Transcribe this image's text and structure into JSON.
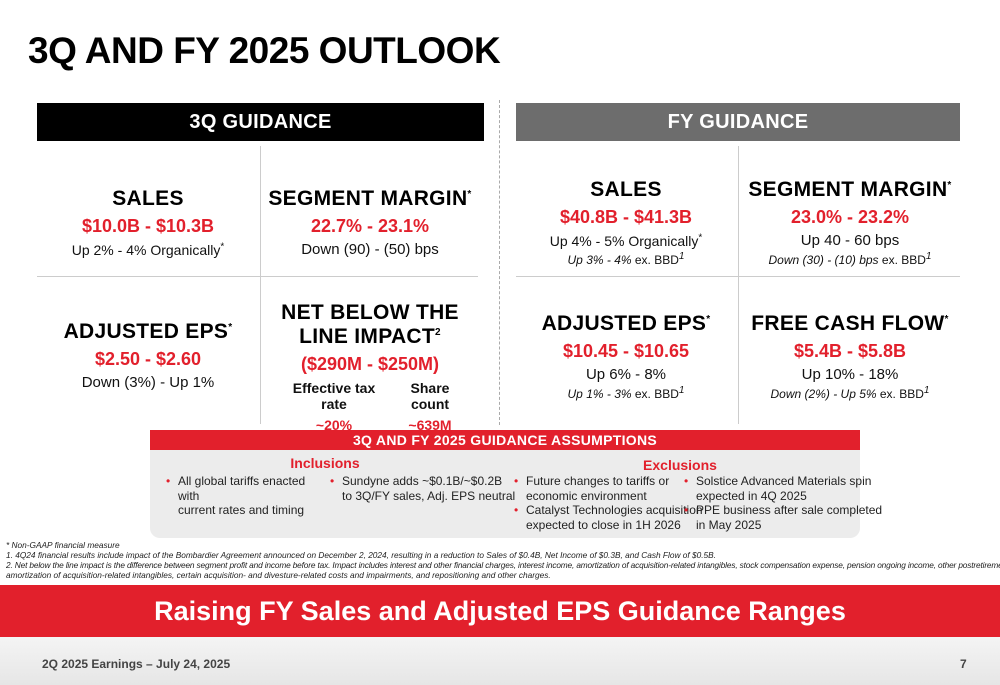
{
  "title": "3Q AND FY 2025 OUTLOOK",
  "q3": {
    "header": "3Q GUIDANCE",
    "sales": {
      "label": "SALES",
      "value": "$10.0B - $10.3B",
      "detail": "Up 2% - 4% Organically",
      "mark": "*"
    },
    "segment_margin": {
      "label": "SEGMENT MARGIN",
      "mark": "*",
      "value": "22.7% - 23.1%",
      "detail": "Down (90) - (50) bps"
    },
    "adjusted_eps": {
      "label": "ADJUSTED EPS",
      "mark": "*",
      "value": "$2.50 - $2.60",
      "detail": "Down (3%) - Up 1%"
    },
    "net_below": {
      "label_line1": "NET BELOW THE",
      "label_line2": "LINE IMPACT",
      "mark": "2",
      "value": "($290M - $250M)",
      "tax_label": "Effective tax rate",
      "tax_value": "~20%",
      "share_label": "Share count",
      "share_value": "~639M"
    }
  },
  "fy": {
    "header": "FY GUIDANCE",
    "sales": {
      "label": "SALES",
      "value": "$40.8B - $41.3B",
      "detail": "Up 4% - 5% Organically",
      "mark": "*",
      "note": "Up 3% - 4%",
      "note_suffix": " ex. BBD",
      "note_mark": "1"
    },
    "segment_margin": {
      "label": "SEGMENT MARGIN",
      "mark": "*",
      "value": "23.0% - 23.2%",
      "detail": "Up 40 - 60 bps",
      "note": "Down (30) - (10) bps",
      "note_suffix": " ex. BBD",
      "note_mark": "1"
    },
    "adjusted_eps": {
      "label": "ADJUSTED EPS",
      "mark": "*",
      "value": "$10.45 - $10.65",
      "detail": "Up 6% - 8%",
      "note": "Up 1% - 3%",
      "note_suffix": " ex. BBD",
      "note_mark": "1"
    },
    "free_cash_flow": {
      "label": "FREE CASH FLOW",
      "mark": "*",
      "value": "$5.4B - $5.8B",
      "detail": "Up 10% - 18%",
      "note": "Down (2%) - Up 5%",
      "note_suffix": " ex. BBD",
      "note_mark": "1"
    }
  },
  "assumptions": {
    "header": "3Q AND FY 2025 GUIDANCE ASSUMPTIONS",
    "inclusions": {
      "label": "Inclusions",
      "items": [
        [
          "All global tariffs enacted with",
          "current rates and timing"
        ],
        [
          "Sundyne adds ~$0.1B/~$0.2B",
          "to 3Q/FY sales, Adj. EPS neutral"
        ]
      ]
    },
    "exclusions": {
      "label": "Exclusions",
      "items": [
        [
          "Future changes to tariffs or",
          "economic environment"
        ],
        [
          "Catalyst Technologies acquisition",
          "expected to close in 1H 2026"
        ],
        [
          "Solstice Advanced Materials spin",
          "expected in 4Q 2025"
        ],
        [
          "PPE business after sale completed",
          "in May 2025"
        ]
      ]
    }
  },
  "footnotes": {
    "star": "* Non-GAAP financial measure",
    "one": "1. 4Q24 financial results include impact of the Bombardier Agreement announced on December 2, 2024, resulting in a reduction to Sales of $0.4B, Net Income of $0.3B, and Cash Flow of $0.5B.",
    "two_a": "2. Net below the line impact is the difference between segment profit and income before tax. Impact includes interest and other financial charges, interest income, amortization of acquisition-related intangibles, stock compensation expense, pension ongoing income, other postretirement income,",
    "two_b": "amortization of acquisition-related intangibles, certain acquisition- and divesture-related costs and impairments, and repositioning and other charges."
  },
  "banner": "Raising FY Sales and Adjusted EPS Guidance Ranges",
  "footer": "2Q 2025 Earnings – July 24, 2025",
  "page_number": "7",
  "colors": {
    "accent_red": "#e2202c",
    "q3_bar": "#000000",
    "fy_bar": "#6d6d6d"
  }
}
